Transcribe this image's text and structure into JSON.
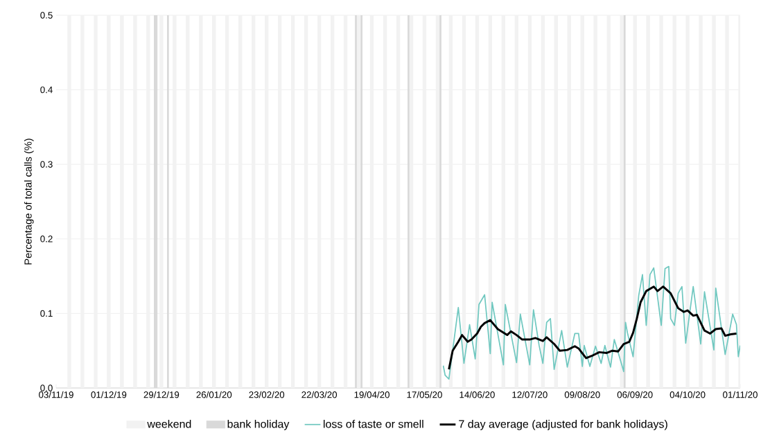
{
  "chart_data": {
    "type": "line",
    "ylabel": "Percentage of total calls (%)",
    "xlim": [
      "2019-11-03",
      "2020-11-01"
    ],
    "ylim": [
      0,
      0.5
    ],
    "xticks": [
      {
        "value": "2019-11-03",
        "label": "03/11/19"
      },
      {
        "value": "2019-12-01",
        "label": "01/12/19"
      },
      {
        "value": "2019-12-29",
        "label": "29/12/19"
      },
      {
        "value": "2020-01-26",
        "label": "26/01/20"
      },
      {
        "value": "2020-02-23",
        "label": "23/02/20"
      },
      {
        "value": "2020-03-22",
        "label": "22/03/20"
      },
      {
        "value": "2020-04-19",
        "label": "19/04/20"
      },
      {
        "value": "2020-05-17",
        "label": "17/05/20"
      },
      {
        "value": "2020-06-14",
        "label": "14/06/20"
      },
      {
        "value": "2020-07-12",
        "label": "12/07/20"
      },
      {
        "value": "2020-08-09",
        "label": "09/08/20"
      },
      {
        "value": "2020-09-06",
        "label": "06/09/20"
      },
      {
        "value": "2020-10-04",
        "label": "04/10/20"
      },
      {
        "value": "2020-11-01",
        "label": "01/11/20"
      }
    ],
    "yticks": [
      {
        "value": 0,
        "label": "0.0"
      },
      0.1,
      0.2,
      0.3,
      0.4,
      0.5
    ],
    "grid": "y",
    "legend": "bottom",
    "marker": "none",
    "line_style": "solid",
    "bands": [
      {
        "axis": "x",
        "from": "2019-11-09",
        "to": "2019-11-11",
        "label": "weekend",
        "color": "#f2f2f2"
      },
      {
        "axis": "x",
        "from": "2019-11-16",
        "to": "2019-11-18",
        "color": "#f2f2f2"
      },
      {
        "axis": "x",
        "from": "2019-11-23",
        "to": "2019-11-25",
        "color": "#f2f2f2"
      },
      {
        "axis": "x",
        "from": "2019-11-30",
        "to": "2019-12-02",
        "color": "#f2f2f2"
      },
      {
        "axis": "x",
        "from": "2019-12-07",
        "to": "2019-12-09",
        "color": "#f2f2f2"
      },
      {
        "axis": "x",
        "from": "2019-12-14",
        "to": "2019-12-16",
        "color": "#f2f2f2"
      },
      {
        "axis": "x",
        "from": "2019-12-21",
        "to": "2019-12-23",
        "color": "#f2f2f2"
      },
      {
        "axis": "x",
        "from": "2019-12-28",
        "to": "2019-12-30",
        "color": "#f2f2f2"
      },
      {
        "axis": "x",
        "from": "2020-01-04",
        "to": "2020-01-06",
        "color": "#f2f2f2"
      },
      {
        "axis": "x",
        "from": "2020-01-11",
        "to": "2020-01-13",
        "color": "#f2f2f2"
      },
      {
        "axis": "x",
        "from": "2020-01-18",
        "to": "2020-01-20",
        "color": "#f2f2f2"
      },
      {
        "axis": "x",
        "from": "2020-01-25",
        "to": "2020-01-27",
        "color": "#f2f2f2"
      },
      {
        "axis": "x",
        "from": "2020-02-01",
        "to": "2020-02-03",
        "color": "#f2f2f2"
      },
      {
        "axis": "x",
        "from": "2020-02-08",
        "to": "2020-02-10",
        "color": "#f2f2f2"
      },
      {
        "axis": "x",
        "from": "2020-02-15",
        "to": "2020-02-17",
        "color": "#f2f2f2"
      },
      {
        "axis": "x",
        "from": "2020-02-22",
        "to": "2020-02-24",
        "color": "#f2f2f2"
      },
      {
        "axis": "x",
        "from": "2020-02-29",
        "to": "2020-03-02",
        "color": "#f2f2f2"
      },
      {
        "axis": "x",
        "from": "2020-03-07",
        "to": "2020-03-09",
        "color": "#f2f2f2"
      },
      {
        "axis": "x",
        "from": "2020-03-14",
        "to": "2020-03-16",
        "color": "#f2f2f2"
      },
      {
        "axis": "x",
        "from": "2020-03-21",
        "to": "2020-03-23",
        "color": "#f2f2f2"
      },
      {
        "axis": "x",
        "from": "2020-03-28",
        "to": "2020-03-30",
        "color": "#f2f2f2"
      },
      {
        "axis": "x",
        "from": "2020-04-04",
        "to": "2020-04-06",
        "color": "#f2f2f2"
      },
      {
        "axis": "x",
        "from": "2020-04-11",
        "to": "2020-04-13",
        "color": "#f2f2f2"
      },
      {
        "axis": "x",
        "from": "2020-04-18",
        "to": "2020-04-20",
        "color": "#f2f2f2"
      },
      {
        "axis": "x",
        "from": "2020-04-25",
        "to": "2020-04-27",
        "color": "#f2f2f2"
      },
      {
        "axis": "x",
        "from": "2020-05-02",
        "to": "2020-05-04",
        "color": "#f2f2f2"
      },
      {
        "axis": "x",
        "from": "2020-05-09",
        "to": "2020-05-11",
        "color": "#f2f2f2"
      },
      {
        "axis": "x",
        "from": "2020-05-16",
        "to": "2020-05-18",
        "color": "#f2f2f2"
      },
      {
        "axis": "x",
        "from": "2020-05-23",
        "to": "2020-05-25",
        "color": "#f2f2f2"
      },
      {
        "axis": "x",
        "from": "2020-05-30",
        "to": "2020-06-01",
        "color": "#f2f2f2"
      },
      {
        "axis": "x",
        "from": "2020-06-06",
        "to": "2020-06-08",
        "color": "#f2f2f2"
      },
      {
        "axis": "x",
        "from": "2020-06-13",
        "to": "2020-06-15",
        "color": "#f2f2f2"
      },
      {
        "axis": "x",
        "from": "2020-06-20",
        "to": "2020-06-22",
        "color": "#f2f2f2"
      },
      {
        "axis": "x",
        "from": "2020-06-27",
        "to": "2020-06-29",
        "color": "#f2f2f2"
      },
      {
        "axis": "x",
        "from": "2020-07-04",
        "to": "2020-07-06",
        "color": "#f2f2f2"
      },
      {
        "axis": "x",
        "from": "2020-07-11",
        "to": "2020-07-13",
        "color": "#f2f2f2"
      },
      {
        "axis": "x",
        "from": "2020-07-18",
        "to": "2020-07-20",
        "color": "#f2f2f2"
      },
      {
        "axis": "x",
        "from": "2020-07-25",
        "to": "2020-07-27",
        "color": "#f2f2f2"
      },
      {
        "axis": "x",
        "from": "2020-08-01",
        "to": "2020-08-03",
        "color": "#f2f2f2"
      },
      {
        "axis": "x",
        "from": "2020-08-08",
        "to": "2020-08-10",
        "color": "#f2f2f2"
      },
      {
        "axis": "x",
        "from": "2020-08-15",
        "to": "2020-08-17",
        "color": "#f2f2f2"
      },
      {
        "axis": "x",
        "from": "2020-08-22",
        "to": "2020-08-24",
        "color": "#f2f2f2"
      },
      {
        "axis": "x",
        "from": "2020-08-29",
        "to": "2020-08-31",
        "color": "#f2f2f2"
      },
      {
        "axis": "x",
        "from": "2020-09-05",
        "to": "2020-09-07",
        "color": "#f2f2f2"
      },
      {
        "axis": "x",
        "from": "2020-09-12",
        "to": "2020-09-14",
        "color": "#f2f2f2"
      },
      {
        "axis": "x",
        "from": "2020-09-19",
        "to": "2020-09-21",
        "color": "#f2f2f2"
      },
      {
        "axis": "x",
        "from": "2020-09-26",
        "to": "2020-09-28",
        "color": "#f2f2f2"
      },
      {
        "axis": "x",
        "from": "2020-10-03",
        "to": "2020-10-05",
        "color": "#f2f2f2"
      },
      {
        "axis": "x",
        "from": "2020-10-10",
        "to": "2020-10-12",
        "color": "#f2f2f2"
      },
      {
        "axis": "x",
        "from": "2020-10-17",
        "to": "2020-10-19",
        "color": "#f2f2f2"
      },
      {
        "axis": "x",
        "from": "2020-10-24",
        "to": "2020-10-26",
        "color": "#f2f2f2"
      },
      {
        "axis": "x",
        "from": "2020-10-31",
        "to": "2020-11-01",
        "color": "#f2f2f2"
      },
      {
        "axis": "x",
        "from": "2019-12-25",
        "to": "2019-12-27",
        "label": "bank holiday",
        "color": "#d9d9d9"
      },
      {
        "axis": "x",
        "from": "2020-01-01",
        "to": "2020-01-02",
        "color": "#d9d9d9"
      },
      {
        "axis": "x",
        "from": "2020-04-10",
        "to": "2020-04-11",
        "color": "#d9d9d9"
      },
      {
        "axis": "x",
        "from": "2020-04-13",
        "to": "2020-04-14",
        "color": "#d9d9d9"
      },
      {
        "axis": "x",
        "from": "2020-05-08",
        "to": "2020-05-09",
        "color": "#d9d9d9"
      },
      {
        "axis": "x",
        "from": "2020-05-25",
        "to": "2020-05-26",
        "color": "#d9d9d9"
      },
      {
        "axis": "x",
        "from": "2020-08-31",
        "to": "2020-09-01",
        "color": "#d9d9d9"
      }
    ],
    "series": [
      {
        "name": "loss of taste or smell",
        "color": "#70c8c0",
        "x": [
          "2020-05-27",
          "2020-05-28",
          "2020-05-30",
          "2020-06-04",
          "2020-06-07",
          "2020-06-10",
          "2020-06-13",
          "2020-06-15",
          "2020-06-18",
          "2020-06-21",
          "2020-06-22",
          "2020-06-28",
          "2020-06-29",
          "2020-07-05",
          "2020-07-07",
          "2020-07-12",
          "2020-07-14",
          "2020-07-17",
          "2020-07-19",
          "2020-07-21",
          "2020-07-23",
          "2020-07-25",
          "2020-07-29",
          "2020-08-01",
          "2020-08-05",
          "2020-08-07",
          "2020-08-09",
          "2020-08-10",
          "2020-08-13",
          "2020-08-16",
          "2020-08-19",
          "2020-08-21",
          "2020-08-24",
          "2020-08-26",
          "2020-08-30",
          "2020-08-31",
          "2020-09-01",
          "2020-09-02",
          "2020-09-05",
          "2020-09-08",
          "2020-09-10",
          "2020-09-12",
          "2020-09-14",
          "2020-09-16",
          "2020-09-20",
          "2020-09-22",
          "2020-09-24",
          "2020-09-25",
          "2020-09-27",
          "2020-09-29",
          "2020-10-01",
          "2020-10-03",
          "2020-10-07",
          "2020-10-11",
          "2020-10-13",
          "2020-10-18",
          "2020-10-19",
          "2020-10-24",
          "2020-10-28",
          "2020-10-30",
          "2020-10-31",
          "2020-11-01"
        ],
        "values": [
          0.03,
          0.017,
          0.012,
          0.108,
          0.033,
          0.085,
          0.039,
          0.112,
          0.125,
          0.046,
          0.115,
          0.031,
          0.112,
          0.034,
          0.099,
          0.031,
          0.105,
          0.057,
          0.033,
          0.088,
          0.093,
          0.025,
          0.077,
          0.028,
          0.073,
          0.073,
          0.029,
          0.057,
          0.029,
          0.056,
          0.033,
          0.057,
          0.028,
          0.065,
          0.031,
          0.022,
          0.088,
          0.074,
          0.042,
          0.124,
          0.152,
          0.084,
          0.152,
          0.161,
          0.084,
          0.16,
          0.163,
          0.093,
          0.084,
          0.127,
          0.136,
          0.06,
          0.136,
          0.059,
          0.129,
          0.051,
          0.134,
          0.045,
          0.099,
          0.085,
          0.042,
          0.057
        ]
      },
      {
        "name": "7 day average (adjusted for bank holidays)",
        "color": "#000000",
        "x": [
          "2020-05-30",
          "2020-06-01",
          "2020-06-04",
          "2020-06-06",
          "2020-06-09",
          "2020-06-11",
          "2020-06-14",
          "2020-06-16",
          "2020-06-18",
          "2020-06-21",
          "2020-06-25",
          "2020-06-30",
          "2020-07-02",
          "2020-07-05",
          "2020-07-08",
          "2020-07-12",
          "2020-07-15",
          "2020-07-19",
          "2020-07-21",
          "2020-07-25",
          "2020-07-28",
          "2020-08-01",
          "2020-08-05",
          "2020-08-07",
          "2020-08-11",
          "2020-08-14",
          "2020-08-18",
          "2020-08-22",
          "2020-08-25",
          "2020-08-28",
          "2020-08-31",
          "2020-09-03",
          "2020-09-05",
          "2020-09-07",
          "2020-09-09",
          "2020-09-12",
          "2020-09-16",
          "2020-09-18",
          "2020-09-21",
          "2020-09-25",
          "2020-09-29",
          "2020-10-02",
          "2020-10-04",
          "2020-10-07",
          "2020-10-09",
          "2020-10-13",
          "2020-10-16",
          "2020-10-19",
          "2020-10-22",
          "2020-10-24",
          "2020-10-27",
          "2020-10-30"
        ],
        "values": [
          0.025,
          0.05,
          0.062,
          0.071,
          0.062,
          0.065,
          0.073,
          0.082,
          0.087,
          0.091,
          0.079,
          0.071,
          0.076,
          0.071,
          0.065,
          0.065,
          0.067,
          0.063,
          0.068,
          0.059,
          0.05,
          0.051,
          0.056,
          0.053,
          0.04,
          0.043,
          0.048,
          0.047,
          0.05,
          0.049,
          0.059,
          0.062,
          0.074,
          0.093,
          0.115,
          0.13,
          0.136,
          0.13,
          0.136,
          0.127,
          0.107,
          0.102,
          0.104,
          0.097,
          0.098,
          0.077,
          0.073,
          0.079,
          0.08,
          0.07,
          0.072,
          0.073
        ]
      }
    ]
  }
}
